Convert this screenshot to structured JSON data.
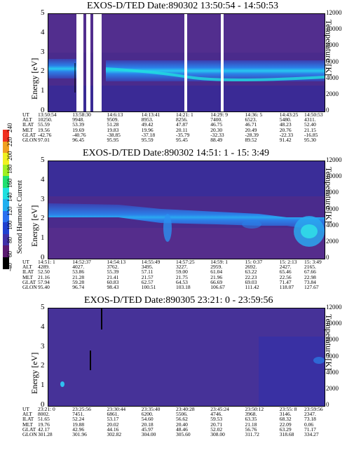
{
  "panels": [
    {
      "title": "EXOS-D/TED  Date:890302  13:50:54 - 14:50:53",
      "ylabel": "Energy [eV]",
      "rlabel": "Temperature [K]",
      "yticks": [
        "0",
        "1",
        "2",
        "3",
        "4",
        "5"
      ],
      "rticks": [
        "0",
        "2000",
        "4000",
        "6000",
        "8000",
        "10000",
        "12000"
      ],
      "rows": [
        {
          "label": "UT",
          "values": [
            "13:50:54",
            "13:58:30",
            "14:6:13",
            "14:13:41",
            "14:21: 1",
            "14:29: 9",
            "14:36: 5",
            "14:43:25",
            "14:50:53"
          ]
        },
        {
          "label": "ALT",
          "values": [
            "10250.",
            "9948.",
            "9509.",
            "8953.",
            "8256.",
            "7400.",
            "6523.",
            "5480.",
            "4311."
          ]
        },
        {
          "label": "ILAT",
          "values": [
            "55.59",
            "53.39",
            "51.28",
            "49.42",
            "47.87",
            "46.75",
            "46.71",
            "48.23",
            "52.40"
          ]
        },
        {
          "label": "MLT",
          "values": [
            "19.56",
            "19.69",
            "19.83",
            "19.96",
            "20.11",
            "20.30",
            "20.49",
            "20.76",
            "21.15"
          ]
        },
        {
          "label": "GLAT",
          "values": [
            "-42.76",
            "-40.76",
            "-38.85",
            "-37.18",
            "-35.79",
            "-32.33",
            "-28.39",
            "-22.33",
            "-16.85"
          ]
        },
        {
          "label": "GLON",
          "values": [
            "97.01",
            "96.45",
            "95.95",
            "95.59",
            "95.45",
            "88.49",
            "89.52",
            "91.42",
            "95.30"
          ]
        }
      ]
    },
    {
      "title": "EXOS-D/TED   Date:890302  14:51: 1 - 15: 3:49",
      "ylabel": "Energy [eV]",
      "rlabel": "Temperature [K]",
      "yticks": [
        "0",
        "1",
        "2",
        "3",
        "4",
        "5"
      ],
      "rticks": [
        "0",
        "2000",
        "4000",
        "6000",
        "8000",
        "10000",
        "12000"
      ],
      "rows": [
        {
          "label": "UT",
          "values": [
            "14:51: 1",
            "14:52:37",
            "14:54:13",
            "14:55:49",
            "14:57:25",
            "14:59: 1",
            "15: 0:37",
            "15: 2:13",
            "15: 3:49"
          ]
        },
        {
          "label": "ALT",
          "values": [
            "4289.",
            "4027.",
            "3762.",
            "3495.",
            "3227.",
            "2959.",
            "2692.",
            "2427.",
            "2165."
          ]
        },
        {
          "label": "ILAT",
          "values": [
            "52.50",
            "53.86",
            "55.39",
            "57.11",
            "59.00",
            "61.04",
            "63.22",
            "65.46",
            "67.66"
          ]
        },
        {
          "label": "MLT",
          "values": [
            "21.16",
            "21.28",
            "21.41",
            "21.57",
            "21.75",
            "21.96",
            "22.23",
            "22.56",
            "22.98"
          ]
        },
        {
          "label": "GLAT",
          "values": [
            "57.94",
            "59.28",
            "60.83",
            "62.57",
            "64.53",
            "66.69",
            "69.03",
            "71.47",
            "73.84"
          ]
        },
        {
          "label": "GLON",
          "values": [
            "95.40",
            "96.74",
            "98.43",
            "100.51",
            "103.18",
            "106.67",
            "111.42",
            "118.07",
            "127.67"
          ]
        }
      ]
    },
    {
      "title": "EXOS-D/TED  Date:890305  23:21: 0 - 23:59:56",
      "ylabel": "Energy [eV]",
      "rlabel": "Temperature [K]",
      "yticks": [
        "0",
        "1",
        "2",
        "3",
        "4",
        "5"
      ],
      "rticks": [
        "0",
        "2000",
        "4000",
        "6000",
        "8000",
        "10000",
        "12000"
      ],
      "rows": [
        {
          "label": "UT",
          "values": [
            "23:21: 0",
            "23:25:56",
            "23:30:44",
            "23:35:40",
            "23:40:28",
            "23:45:24",
            "23:50:12",
            "23:55: 8",
            "23:59:56"
          ]
        },
        {
          "label": "ALT",
          "values": [
            "8002.",
            "7451.",
            "6861.",
            "6200.",
            "5506.",
            "4746.",
            "3968.",
            "3146.",
            "2347."
          ]
        },
        {
          "label": "ILAT",
          "values": [
            "51.65",
            "52.24",
            "53.17",
            "54.60",
            "56.62",
            "59.53",
            "63.35",
            "68.32",
            "73.18"
          ]
        },
        {
          "label": "MLT",
          "values": [
            "19.76",
            "19.88",
            "20.02",
            "20.18",
            "20.40",
            "20.71",
            "21.18",
            "22.09",
            "0.06"
          ]
        },
        {
          "label": "GLAT",
          "values": [
            "42.17",
            "42.96",
            "44.16",
            "45.97",
            "48.46",
            "52.02",
            "56.76",
            "63.29",
            "71.17"
          ]
        },
        {
          "label": "GLON",
          "values": [
            "301.28",
            "301.96",
            "302.82",
            "304.00",
            "305.60",
            "308.00",
            "311.72",
            "318.68",
            "334.27"
          ]
        }
      ]
    }
  ],
  "colorbar": {
    "label": "Second Harmonic Current",
    "ticks": [
      "-40",
      "60",
      "80",
      "100",
      "120",
      "140",
      "160",
      "180",
      "200",
      "220",
      "240"
    ],
    "colors": [
      "#000000",
      "#5a1a70",
      "#4030a8",
      "#2040d0",
      "#2a70f0",
      "#20b0f0",
      "#20e0e0",
      "#20e070",
      "#a0f020",
      "#f0f020",
      "#f0a020",
      "#f03020"
    ]
  },
  "chart_data": [
    {
      "type": "heatmap",
      "title": "EXOS-D/TED  Date:890302  13:50:54 - 14:50:53",
      "xlabel": "UT",
      "ylabel": "Energy [eV]",
      "y2label": "Temperature [K]",
      "ylim": [
        0,
        5
      ],
      "y2lim": [
        0,
        12000
      ],
      "x": [
        "13:50:54",
        "13:58:30",
        "14:6:13",
        "14:13:41",
        "14:21: 1",
        "14:29: 9",
        "14:36: 5",
        "14:43:25",
        "14:50:53"
      ],
      "band_center_eV": [
        2.3,
        2.3,
        2.1,
        1.9,
        1.8,
        1.8,
        1.8,
        1.8,
        1.9
      ],
      "temperature_K": [
        5600,
        5600,
        5200,
        4800,
        4400,
        4200,
        4200,
        4200,
        4400
      ],
      "data_gaps_UT": [
        "13:58:30",
        "14:21: 1",
        "14:29: 9"
      ]
    },
    {
      "type": "heatmap",
      "title": "EXOS-D/TED   Date:890302  14:51: 1 - 15: 3:49",
      "xlabel": "UT",
      "ylabel": "Energy [eV]",
      "y2label": "Temperature [K]",
      "ylim": [
        0,
        5
      ],
      "y2lim": [
        0,
        12000
      ],
      "x": [
        "14:51: 1",
        "14:52:37",
        "14:54:13",
        "14:55:49",
        "14:57:25",
        "14:59: 1",
        "15: 0:37",
        "15: 2:13",
        "15: 3:49"
      ],
      "band_center_eV": [
        2.3,
        2.2,
        2.1,
        1.9,
        1.9,
        1.9,
        1.8,
        1.7,
        1.4
      ],
      "temperature_K": [
        5500,
        5300,
        5100,
        4600,
        4600,
        4500,
        4300,
        4100,
        3400
      ]
    },
    {
      "type": "heatmap",
      "title": "EXOS-D/TED  Date:890305  23:21: 0 - 23:59:56",
      "xlabel": "UT",
      "ylabel": "Energy [eV]",
      "y2label": "Temperature [K]",
      "ylim": [
        0,
        5
      ],
      "y2lim": [
        0,
        12000
      ],
      "x": [
        "23:21: 0",
        "23:25:56",
        "23:30:44",
        "23:35:40",
        "23:40:28",
        "23:45:24",
        "23:50:12",
        "23:55: 8",
        "23:59:56"
      ],
      "band_center_eV": [
        null,
        null,
        null,
        null,
        null,
        null,
        null,
        2.6,
        2.6
      ],
      "temperature_K": [
        null,
        null,
        null,
        null,
        null,
        null,
        null,
        6200,
        6200
      ]
    }
  ]
}
